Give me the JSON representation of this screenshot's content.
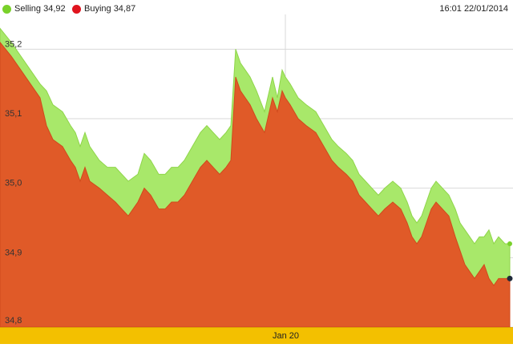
{
  "legend": {
    "selling_label": "Selling 34,92",
    "buying_label": "Buying 34,87"
  },
  "timestamp": "16:01 22/01/2014",
  "date_band": {
    "label": "Jan 20"
  },
  "colors": {
    "selling": "#a8e86a",
    "selling_dot": "#79d12a",
    "buying": "#e05a28",
    "buying_dot": "#e0141e",
    "band": "#f3c000",
    "grid": "#d9d9d9"
  },
  "chart_data": {
    "type": "area",
    "title": "",
    "xlabel": "",
    "ylabel": "",
    "ylim": [
      34.8,
      35.25
    ],
    "yticks": [
      {
        "value": 34.8,
        "label": "34,8"
      },
      {
        "value": 34.9,
        "label": "34,9"
      },
      {
        "value": 35.0,
        "label": "35,0"
      },
      {
        "value": 35.1,
        "label": "35,1"
      },
      {
        "value": 35.2,
        "label": "35,2"
      }
    ],
    "series": [
      {
        "name": "Selling",
        "x": [
          0,
          14,
          26,
          38,
          50,
          58,
          66,
          78,
          88,
          94,
          100,
          106,
          112,
          124,
          134,
          144,
          152,
          160,
          172,
          180,
          188,
          198,
          206,
          214,
          222,
          230,
          240,
          250,
          258,
          266,
          274,
          282,
          288,
          294,
          300,
          306,
          312,
          320,
          330,
          340,
          346,
          352,
          356,
          362,
          372,
          382,
          394,
          404,
          414,
          422,
          432,
          440,
          448,
          456,
          464,
          472,
          480,
          490,
          500,
          508,
          514,
          520,
          526,
          532,
          538,
          544,
          552,
          560,
          568,
          574,
          580,
          586,
          592,
          598,
          604,
          610,
          616,
          622,
          630,
          636
        ],
        "values": [
          35.23,
          35.21,
          35.19,
          35.17,
          35.15,
          35.14,
          35.12,
          35.11,
          35.09,
          35.08,
          35.06,
          35.08,
          35.06,
          35.04,
          35.03,
          35.03,
          35.02,
          35.01,
          35.02,
          35.05,
          35.04,
          35.02,
          35.02,
          35.03,
          35.03,
          35.04,
          35.06,
          35.08,
          35.09,
          35.08,
          35.07,
          35.08,
          35.09,
          35.2,
          35.18,
          35.17,
          35.16,
          35.14,
          35.11,
          35.16,
          35.13,
          35.17,
          35.16,
          35.15,
          35.13,
          35.12,
          35.11,
          35.09,
          35.07,
          35.06,
          35.05,
          35.04,
          35.02,
          35.01,
          35.0,
          34.99,
          35.0,
          35.01,
          35.0,
          34.98,
          34.96,
          34.95,
          34.96,
          34.98,
          35.0,
          35.01,
          35.0,
          34.99,
          34.97,
          34.95,
          34.94,
          34.93,
          34.92,
          34.93,
          34.93,
          34.94,
          34.92,
          34.93,
          34.92,
          34.92
        ]
      },
      {
        "name": "Buying",
        "x": [
          0,
          14,
          26,
          38,
          50,
          58,
          66,
          78,
          88,
          94,
          100,
          106,
          112,
          124,
          134,
          144,
          152,
          160,
          172,
          180,
          188,
          198,
          206,
          214,
          222,
          230,
          240,
          250,
          258,
          266,
          274,
          282,
          288,
          294,
          300,
          306,
          312,
          320,
          330,
          340,
          346,
          352,
          356,
          362,
          372,
          382,
          394,
          404,
          414,
          422,
          432,
          440,
          448,
          456,
          464,
          472,
          480,
          490,
          500,
          508,
          514,
          520,
          526,
          532,
          538,
          544,
          552,
          560,
          568,
          574,
          580,
          586,
          592,
          598,
          604,
          610,
          616,
          622,
          630,
          636
        ],
        "values": [
          35.21,
          35.19,
          35.17,
          35.15,
          35.13,
          35.09,
          35.07,
          35.06,
          35.04,
          35.03,
          35.01,
          35.03,
          35.01,
          35.0,
          34.99,
          34.98,
          34.97,
          34.96,
          34.98,
          35.0,
          34.99,
          34.97,
          34.97,
          34.98,
          34.98,
          34.99,
          35.01,
          35.03,
          35.04,
          35.03,
          35.02,
          35.03,
          35.04,
          35.16,
          35.14,
          35.13,
          35.12,
          35.1,
          35.08,
          35.13,
          35.11,
          35.14,
          35.13,
          35.12,
          35.1,
          35.09,
          35.08,
          35.06,
          35.04,
          35.03,
          35.02,
          35.01,
          34.99,
          34.98,
          34.97,
          34.96,
          34.97,
          34.98,
          34.97,
          34.95,
          34.93,
          34.92,
          34.93,
          34.95,
          34.97,
          34.98,
          34.97,
          34.96,
          34.93,
          34.91,
          34.89,
          34.88,
          34.87,
          34.88,
          34.89,
          34.87,
          34.86,
          34.87,
          34.87,
          34.87
        ]
      }
    ],
    "x_marker_label": "Jan 20",
    "grid": true,
    "legend_position": "top-left"
  }
}
